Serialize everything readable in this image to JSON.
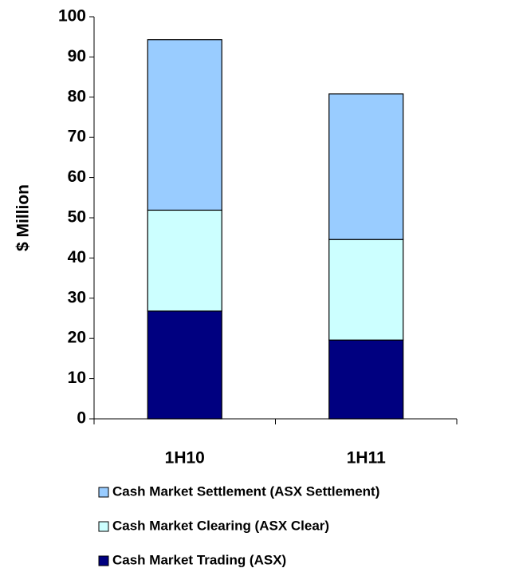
{
  "chart_data": {
    "type": "stacked_bar",
    "y_label": "$ Million",
    "categories": [
      "1H10",
      "1H11"
    ],
    "series": [
      {
        "name": "Cash Market Trading (ASX)",
        "color": "#000080",
        "values": [
          26.8,
          19.6
        ]
      },
      {
        "name": "Cash Market Clearing  (ASX Clear)",
        "color": "#ccffff",
        "values": [
          25.1,
          25.0
        ]
      },
      {
        "name": "Cash Market Settlement (ASX Settlement)",
        "color": "#99ccff",
        "values": [
          42.4,
          36.2
        ]
      }
    ],
    "ylim": [
      0,
      100
    ],
    "yticks": [
      0,
      10,
      20,
      30,
      40,
      50,
      60,
      70,
      80,
      90,
      100
    ],
    "grid": false
  }
}
